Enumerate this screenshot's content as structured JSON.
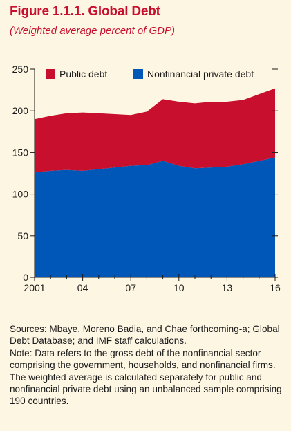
{
  "header": {
    "title": "Figure 1.1.1. Global Debt",
    "subtitle": "(Weighted average percent of GDP)"
  },
  "colors": {
    "public": "#c8102e",
    "private": "#0057b7",
    "background": "#fdf6e3",
    "title": "#c8102e"
  },
  "chart_data": {
    "type": "area",
    "stacked": true,
    "x": [
      2001,
      2002,
      2003,
      2004,
      2005,
      2006,
      2007,
      2008,
      2009,
      2010,
      2011,
      2012,
      2013,
      2014,
      2015,
      2016
    ],
    "series": [
      {
        "name": "Nonfinancial private debt",
        "color": "#0057b7",
        "values": [
          126,
          128,
          129,
          128,
          130,
          132,
          134,
          135,
          140,
          134,
          131,
          132,
          133,
          136,
          140,
          144
        ]
      },
      {
        "name": "Public debt",
        "color": "#c8102e",
        "values": [
          64,
          66,
          68,
          70,
          67,
          64,
          61,
          64,
          74,
          77,
          78,
          79,
          78,
          77,
          80,
          83
        ]
      }
    ],
    "legend": [
      {
        "label": "Public debt",
        "color": "#c8102e"
      },
      {
        "label": "Nonfinancial private debt",
        "color": "#0057b7"
      }
    ],
    "legend_position": "top",
    "xlim": [
      2001,
      2016
    ],
    "ylim": [
      0,
      250
    ],
    "yticks": [
      "0",
      "50",
      "100",
      "150",
      "200",
      "250"
    ],
    "ytick_values": [
      0,
      50,
      100,
      150,
      200,
      250
    ],
    "xtick_values": [
      2001,
      2004,
      2007,
      2010,
      2013,
      2016
    ],
    "xtick_labels": [
      "2001",
      "04",
      "07",
      "10",
      "13",
      "16"
    ],
    "grid": false
  },
  "notes": {
    "sources": "Sources: Mbaye, Moreno Badia, and Chae forthcoming-a; Global Debt Database; and IMF staff calculations.",
    "note": "Note: Data refers to the gross debt of the nonfinancial sector—comprising the government, households, and nonfinancial firms. The weighted average is calculated separately for public and nonfinancial private debt using an unbalanced sample comprising 190 countries."
  }
}
